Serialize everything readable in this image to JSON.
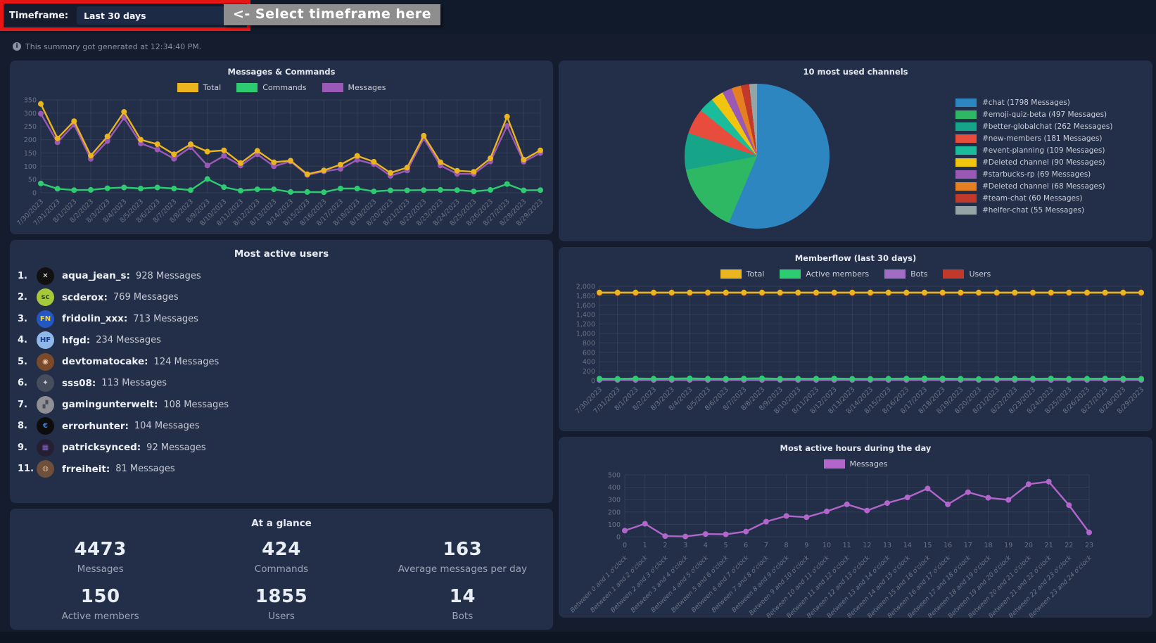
{
  "toolbar": {
    "timeframe_label": "Timeframe:",
    "timeframe_value": "Last 30 days",
    "hint_label": "<- Select timeframe here",
    "generated_note": "This summary got generated at 12:34:40 PM."
  },
  "users": {
    "title": "Most active users",
    "messages_suffix": "Messages",
    "items": [
      {
        "rank": "1.",
        "name": "aqua_jean_s:",
        "messages": "928 Messages",
        "avatar_bg": "#111111",
        "avatar_fg": "#ffffff",
        "avatar_text": "✕"
      },
      {
        "rank": "2.",
        "name": "scderox:",
        "messages": "769 Messages",
        "avatar_bg": "#a6c83b",
        "avatar_fg": "#2f4a12",
        "avatar_text": "sc"
      },
      {
        "rank": "3.",
        "name": "fridolin_xxx:",
        "messages": "713 Messages",
        "avatar_bg": "#2456c4",
        "avatar_fg": "#f5d327",
        "avatar_text": "FN"
      },
      {
        "rank": "4.",
        "name": "hfgd:",
        "messages": "234 Messages",
        "avatar_bg": "#8fb8e8",
        "avatar_fg": "#1b3f8f",
        "avatar_text": "HF"
      },
      {
        "rank": "5.",
        "name": "devtomatocake:",
        "messages": "124 Messages",
        "avatar_bg": "#7a4a2b",
        "avatar_fg": "#f0c9a0",
        "avatar_text": "◉"
      },
      {
        "rank": "6.",
        "name": "sss08:",
        "messages": "113 Messages",
        "avatar_bg": "#474d5c",
        "avatar_fg": "#c8cfdd",
        "avatar_text": "✦"
      },
      {
        "rank": "7.",
        "name": "gamingunterwelt:",
        "messages": "108 Messages",
        "avatar_bg": "#8d9094",
        "avatar_fg": "#4a4d52",
        "avatar_text": "▞"
      },
      {
        "rank": "8.",
        "name": "errorhunter:",
        "messages": "104 Messages",
        "avatar_bg": "#0d0d0d",
        "avatar_fg": "#2d7ff0",
        "avatar_text": "€"
      },
      {
        "rank": "9.",
        "name": "patricksynced:",
        "messages": "92 Messages",
        "avatar_bg": "#241f33",
        "avatar_fg": "#8a63c9",
        "avatar_text": "▦"
      },
      {
        "rank": "11.",
        "name": "frreiheit:",
        "messages": "81 Messages",
        "avatar_bg": "#6d4f3c",
        "avatar_fg": "#d9b08a",
        "avatar_text": "◍"
      }
    ]
  },
  "glance": {
    "title": "At a glance",
    "stats": [
      {
        "value": "4473",
        "label": "Messages"
      },
      {
        "value": "424",
        "label": "Commands"
      },
      {
        "value": "163",
        "label": "Average messages per day"
      },
      {
        "value": "150",
        "label": "Active members"
      },
      {
        "value": "1855",
        "label": "Users"
      },
      {
        "value": "14",
        "label": "Bots"
      }
    ]
  },
  "chart_data": [
    {
      "id": "messages_commands",
      "type": "line",
      "title": "Messages & Commands",
      "legend_position": "top",
      "grid": true,
      "ylim": [
        0,
        350
      ],
      "ytick": 50,
      "categories": [
        "7/30/2023",
        "7/31/2023",
        "8/1/2023",
        "8/2/2023",
        "8/3/2023",
        "8/4/2023",
        "8/5/2023",
        "8/6/2023",
        "8/7/2023",
        "8/8/2023",
        "8/9/2023",
        "8/10/2023",
        "8/11/2023",
        "8/12/2023",
        "8/13/2023",
        "8/14/2023",
        "8/15/2023",
        "8/16/2023",
        "8/17/2023",
        "8/18/2023",
        "8/19/2023",
        "8/20/2023",
        "8/21/2023",
        "8/22/2023",
        "8/23/2023",
        "8/24/2023",
        "8/25/2023",
        "8/26/2023",
        "8/27/2023",
        "8/28/2023",
        "8/29/2023"
      ],
      "series": [
        {
          "name": "Total",
          "color": "#eab51e",
          "values": [
            335,
            205,
            270,
            140,
            212,
            305,
            200,
            183,
            145,
            183,
            155,
            160,
            112,
            158,
            115,
            121,
            70,
            84,
            106,
            139,
            117,
            75,
            95,
            215,
            115,
            83,
            79,
            130,
            287,
            125,
            160
          ]
        },
        {
          "name": "Commands",
          "color": "#2ecc71",
          "values": [
            35,
            15,
            10,
            11,
            17,
            20,
            16,
            20,
            16,
            10,
            52,
            21,
            8,
            13,
            13,
            3,
            3,
            2,
            16,
            16,
            5,
            9,
            9,
            10,
            11,
            10,
            5,
            11,
            33,
            9,
            10
          ]
        },
        {
          "name": "Messages",
          "color": "#9b59b6",
          "values": [
            298,
            190,
            257,
            128,
            195,
            283,
            186,
            163,
            128,
            172,
            103,
            139,
            103,
            145,
            100,
            118,
            67,
            81,
            90,
            124,
            108,
            64,
            84,
            205,
            103,
            71,
            71,
            118,
            252,
            117,
            150
          ]
        }
      ]
    },
    {
      "id": "channels_pie",
      "type": "pie",
      "title": "10 most used channels",
      "legend_position": "right",
      "slices": [
        {
          "label": "#chat (1798 Messages)",
          "value": 1798,
          "color": "#2e86c1"
        },
        {
          "label": "#emoji-quiz-beta (497 Messages)",
          "value": 497,
          "color": "#2eb864"
        },
        {
          "label": "#better-globalchat (262 Messages)",
          "value": 262,
          "color": "#17a589"
        },
        {
          "label": "#new-members (181 Messages)",
          "value": 181,
          "color": "#e74c3c"
        },
        {
          "label": "#event-planning (109 Messages)",
          "value": 109,
          "color": "#1abc9c"
        },
        {
          "label": "#Deleted channel (90 Messages)",
          "value": 90,
          "color": "#f1c40f"
        },
        {
          "label": "#starbucks-rp (69 Messages)",
          "value": 69,
          "color": "#9b59b6"
        },
        {
          "label": "#Deleted channel (68 Messages)",
          "value": 68,
          "color": "#e67e22"
        },
        {
          "label": "#team-chat (60 Messages)",
          "value": 60,
          "color": "#c0392b"
        },
        {
          "label": "#helfer-chat (55 Messages)",
          "value": 55,
          "color": "#95a5a6"
        }
      ]
    },
    {
      "id": "memberflow",
      "type": "line",
      "title": "Memberflow (last 30 days)",
      "legend_position": "top",
      "grid": true,
      "ylim": [
        0,
        2000
      ],
      "ytick": 200,
      "comma": true,
      "categories": [
        "7/30/2023",
        "7/31/2023",
        "8/1/2023",
        "8/2/2023",
        "8/3/2023",
        "8/4/2023",
        "8/5/2023",
        "8/6/2023",
        "8/7/2023",
        "8/8/2023",
        "8/9/2023",
        "8/10/2023",
        "8/11/2023",
        "8/12/2023",
        "8/13/2023",
        "8/14/2023",
        "8/15/2023",
        "8/16/2023",
        "8/17/2023",
        "8/18/2023",
        "8/19/2023",
        "8/20/2023",
        "8/21/2023",
        "8/22/2023",
        "8/23/2023",
        "8/24/2023",
        "8/25/2023",
        "8/26/2023",
        "8/27/2023",
        "8/28/2023",
        "8/29/2023"
      ],
      "series": [
        {
          "name": "Total",
          "color": "#eab51e",
          "values": [
            1869,
            1869,
            1869,
            1869,
            1869,
            1869,
            1869,
            1869,
            1869,
            1869,
            1869,
            1869,
            1869,
            1869,
            1869,
            1869,
            1869,
            1869,
            1869,
            1869,
            1869,
            1869,
            1869,
            1869,
            1869,
            1869,
            1869,
            1869,
            1869,
            1869,
            1869
          ]
        },
        {
          "name": "Active members",
          "color": "#2ecc71",
          "values": [
            42,
            38,
            45,
            40,
            43,
            48,
            41,
            39,
            44,
            50,
            37,
            40,
            42,
            45,
            38,
            36,
            41,
            43,
            47,
            44,
            39,
            35,
            38,
            42,
            40,
            43,
            37,
            41,
            44,
            40,
            38
          ]
        },
        {
          "name": "Bots",
          "color": "#a06cc4",
          "values": [
            14,
            14,
            14,
            14,
            14,
            14,
            14,
            14,
            14,
            14,
            14,
            14,
            14,
            14,
            14,
            14,
            14,
            14,
            14,
            14,
            14,
            14,
            14,
            14,
            14,
            14,
            14,
            14,
            14,
            14,
            14
          ]
        },
        {
          "name": "Users",
          "color": "#c0392b",
          "values": [
            1855,
            1855,
            1855,
            1855,
            1855,
            1855,
            1855,
            1855,
            1855,
            1855,
            1855,
            1855,
            1855,
            1855,
            1855,
            1855,
            1855,
            1855,
            1855,
            1855,
            1855,
            1855,
            1855,
            1855,
            1855,
            1855,
            1855,
            1855,
            1855,
            1855,
            1855
          ]
        }
      ]
    },
    {
      "id": "active_hours",
      "type": "line",
      "title": "Most active hours during the day",
      "legend_position": "top",
      "grid": true,
      "ylim": [
        0,
        500
      ],
      "ytick": 100,
      "categories_short": [
        "0",
        "1",
        "2",
        "3",
        "4",
        "5",
        "6",
        "7",
        "8",
        "9",
        "10",
        "11",
        "12",
        "13",
        "14",
        "15",
        "16",
        "17",
        "18",
        "19",
        "20",
        "21",
        "22",
        "23"
      ],
      "categories": [
        "Between 0 and 1 o'clock",
        "Between 1 and 2 o'clock",
        "Between 2 and 3 o'clock",
        "Between 3 and 4 o'clock",
        "Between 4 and 5 o'clock",
        "Between 5 and 6 o'clock",
        "Between 6 and 7 o'clock",
        "Between 7 and 8 o'clock",
        "Between 8 and 9 o'clock",
        "Between 9 and 10 o'clock",
        "Between 10 and 11 o'clock",
        "Between 11 and 12 o'clock",
        "Between 12 and 13 o'clock",
        "Between 13 and 14 o'clock",
        "Between 14 and 15 o'clock",
        "Between 15 and 16 o'clock",
        "Between 16 and 17 o'clock",
        "Between 17 and 18 o'clock",
        "Between 18 and 19 o'clock",
        "Between 19 and 20 o'clock",
        "Between 20 and 21 o'clock",
        "Between 21 and 22 o'clock",
        "Between 22 and 23 o'clock",
        "Between 23 and 24 o'clock"
      ],
      "series": [
        {
          "name": "Messages",
          "color": "#b266cc",
          "values": [
            50,
            105,
            5,
            2,
            22,
            20,
            42,
            122,
            168,
            158,
            205,
            262,
            212,
            272,
            318,
            390,
            262,
            360,
            315,
            298,
            425,
            445,
            255,
            35
          ]
        }
      ]
    }
  ]
}
